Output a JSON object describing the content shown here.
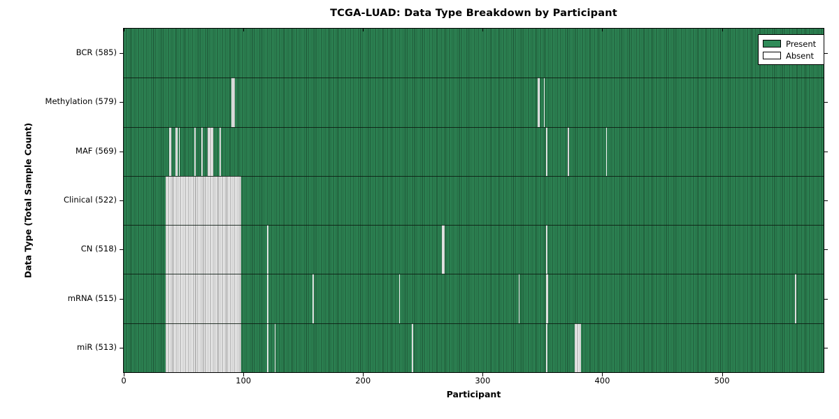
{
  "chart_data": {
    "type": "heatmap",
    "title": "TCGA-LUAD: Data Type Breakdown by Participant",
    "xlabel": "Participant",
    "ylabel": "Data Type (Total Sample Count)",
    "x_ticks": [
      0,
      100,
      200,
      300,
      400,
      500
    ],
    "x_max": 585,
    "grid": false,
    "legend_position": "upper right",
    "legend": [
      {
        "label": "Present",
        "color": "#2f8b58"
      },
      {
        "label": "Absent",
        "color": "#ffffff"
      }
    ],
    "colors": {
      "present_fill": "#2f8b58",
      "present_edge": "#1b4d31",
      "absent_fill": "#f5f5f5",
      "absent_edge": "#8f8f8f",
      "axis": "#000000"
    },
    "rows": [
      {
        "label": "BCR (585)",
        "data_type": "BCR",
        "total": 585,
        "absent_ranges": []
      },
      {
        "label": "Methylation (579)",
        "data_type": "Methylation",
        "total": 579,
        "absent_ranges": [
          [
            90,
            93
          ],
          [
            346,
            348
          ],
          [
            351,
            352
          ]
        ]
      },
      {
        "label": "MAF (569)",
        "data_type": "MAF",
        "total": 569,
        "absent_ranges": [
          [
            38,
            40
          ],
          [
            43,
            45
          ],
          [
            46,
            47
          ],
          [
            59,
            60
          ],
          [
            65,
            66
          ],
          [
            70,
            75
          ],
          [
            80,
            81
          ],
          [
            353,
            354
          ],
          [
            371,
            372
          ],
          [
            403,
            404
          ]
        ]
      },
      {
        "label": "Clinical (522)",
        "data_type": "Clinical",
        "total": 522,
        "absent_ranges": [
          [
            35,
            98
          ]
        ]
      },
      {
        "label": "CN (518)",
        "data_type": "CN",
        "total": 518,
        "absent_ranges": [
          [
            35,
            98
          ],
          [
            120,
            121
          ],
          [
            266,
            268
          ],
          [
            353,
            354
          ]
        ]
      },
      {
        "label": "mRNA (515)",
        "data_type": "mRNA",
        "total": 515,
        "absent_ranges": [
          [
            35,
            98
          ],
          [
            120,
            121
          ],
          [
            158,
            159
          ],
          [
            230,
            231
          ],
          [
            330,
            331
          ],
          [
            353,
            355
          ],
          [
            561,
            562
          ]
        ]
      },
      {
        "label": "miR (513)",
        "data_type": "miR",
        "total": 513,
        "absent_ranges": [
          [
            35,
            98
          ],
          [
            120,
            121
          ],
          [
            126,
            127
          ],
          [
            241,
            242
          ],
          [
            353,
            354
          ],
          [
            377,
            382
          ]
        ]
      }
    ]
  }
}
